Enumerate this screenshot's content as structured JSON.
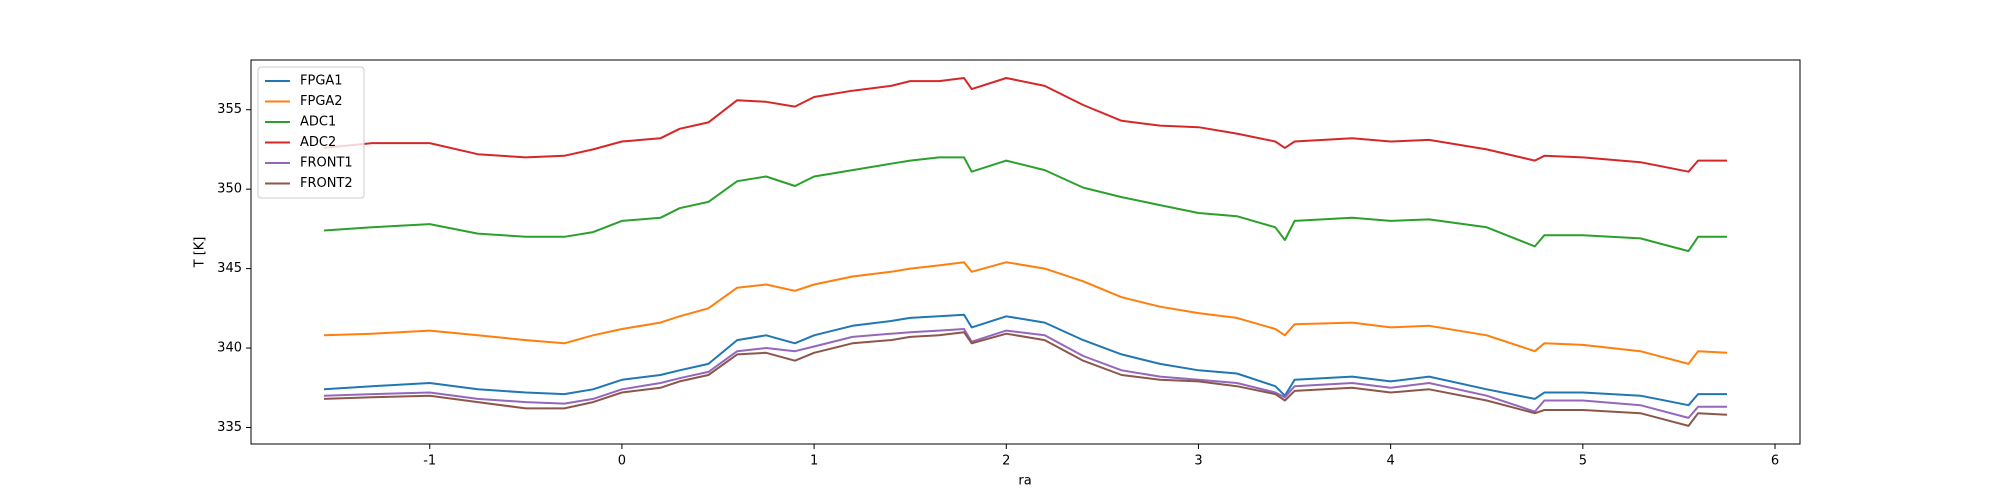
{
  "chart_data": {
    "type": "line",
    "xlabel": "ra",
    "ylabel": "T [K]",
    "x": [
      -1.55,
      -1.3,
      -1.0,
      -0.75,
      -0.5,
      -0.3,
      -0.15,
      0,
      0.2,
      0.3,
      0.45,
      0.6,
      0.75,
      0.9,
      1.0,
      1.2,
      1.4,
      1.5,
      1.65,
      1.78,
      1.82,
      2.0,
      2.2,
      2.4,
      2.6,
      2.8,
      3.0,
      3.2,
      3.4,
      3.45,
      3.5,
      3.8,
      4.0,
      4.2,
      4.5,
      4.75,
      4.8,
      5.0,
      5.3,
      5.55,
      5.6,
      5.75
    ],
    "series": [
      {
        "name": "FPGA1",
        "color": "#1f77b4",
        "values": [
          337.4,
          337.6,
          337.8,
          337.4,
          337.2,
          337.1,
          337.4,
          338.0,
          338.3,
          338.6,
          339.0,
          340.5,
          340.8,
          340.3,
          340.8,
          341.4,
          341.7,
          341.9,
          342.0,
          342.1,
          341.3,
          342.0,
          341.6,
          340.5,
          339.6,
          339.0,
          338.6,
          338.4,
          337.6,
          337.0,
          338.0,
          338.2,
          337.9,
          338.2,
          337.4,
          336.8,
          337.2,
          337.2,
          337.0,
          336.4,
          337.1,
          337.1
        ]
      },
      {
        "name": "FPGA2",
        "color": "#ff7f0e",
        "values": [
          340.8,
          340.9,
          341.1,
          340.8,
          340.5,
          340.3,
          340.8,
          341.2,
          341.6,
          342.0,
          342.5,
          343.8,
          344.0,
          343.6,
          344.0,
          344.5,
          344.8,
          345.0,
          345.2,
          345.4,
          344.8,
          345.4,
          345.0,
          344.2,
          343.2,
          342.6,
          342.2,
          341.9,
          341.2,
          340.8,
          341.5,
          341.6,
          341.3,
          341.4,
          340.8,
          339.8,
          340.3,
          340.2,
          339.8,
          339.0,
          339.8,
          339.7
        ]
      },
      {
        "name": "ADC1",
        "color": "#2ca02c",
        "values": [
          347.4,
          347.6,
          347.8,
          347.2,
          347.0,
          347.0,
          347.3,
          348.0,
          348.2,
          348.8,
          349.2,
          350.5,
          350.8,
          350.2,
          350.8,
          351.2,
          351.6,
          351.8,
          352.0,
          352.0,
          351.1,
          351.8,
          351.2,
          350.1,
          349.5,
          349.0,
          348.5,
          348.3,
          347.6,
          346.8,
          348.0,
          348.2,
          348.0,
          348.1,
          347.6,
          346.4,
          347.1,
          347.1,
          346.9,
          346.1,
          347.0,
          347.0
        ]
      },
      {
        "name": "ADC2",
        "color": "#d62728",
        "values": [
          352.6,
          352.9,
          352.9,
          352.2,
          352.0,
          352.1,
          352.5,
          353.0,
          353.2,
          353.8,
          354.2,
          355.6,
          355.5,
          355.2,
          355.8,
          356.2,
          356.5,
          356.8,
          356.8,
          357.0,
          356.3,
          357.0,
          356.5,
          355.3,
          354.3,
          354.0,
          353.9,
          353.5,
          353.0,
          352.6,
          353.0,
          353.2,
          353.0,
          353.1,
          352.5,
          351.8,
          352.1,
          352.0,
          351.7,
          351.1,
          351.8,
          351.8
        ]
      },
      {
        "name": "FRONT1",
        "color": "#9467bd",
        "values": [
          337.0,
          337.1,
          337.2,
          336.8,
          336.6,
          336.5,
          336.8,
          337.4,
          337.8,
          338.1,
          338.5,
          339.8,
          340.0,
          339.8,
          340.1,
          340.7,
          340.9,
          341.0,
          341.1,
          341.2,
          340.4,
          341.1,
          340.8,
          339.5,
          338.6,
          338.2,
          338.0,
          337.8,
          337.2,
          336.9,
          337.6,
          337.8,
          337.5,
          337.8,
          337.0,
          336.0,
          336.7,
          336.7,
          336.4,
          335.6,
          336.3,
          336.3
        ]
      },
      {
        "name": "FRONT2",
        "color": "#8c564b",
        "values": [
          336.8,
          336.9,
          337.0,
          336.6,
          336.2,
          336.2,
          336.6,
          337.2,
          337.5,
          337.9,
          338.3,
          339.6,
          339.7,
          339.2,
          339.7,
          340.3,
          340.5,
          340.7,
          340.8,
          341.0,
          340.3,
          340.9,
          340.5,
          339.2,
          338.3,
          338.0,
          337.9,
          337.6,
          337.1,
          336.7,
          337.3,
          337.5,
          337.2,
          337.4,
          336.7,
          335.9,
          336.1,
          336.1,
          335.9,
          335.1,
          335.9,
          335.8
        ]
      }
    ],
    "xlim": [
      -1.93,
      6.13
    ],
    "xticks": [
      -1,
      0,
      1,
      2,
      3,
      4,
      5,
      6
    ],
    "ylim": [
      333.96,
      358.13
    ],
    "yticks": [
      335,
      340,
      345,
      350,
      355
    ],
    "grid": false,
    "legend": "upper left"
  }
}
